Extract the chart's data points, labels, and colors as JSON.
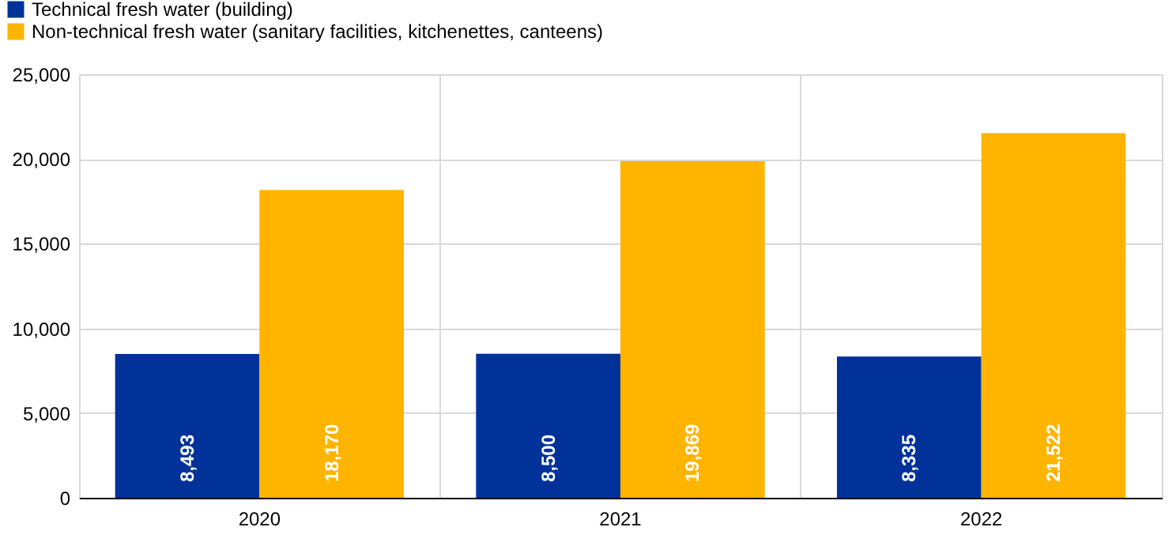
{
  "chart_data": {
    "type": "bar",
    "categories": [
      "2020",
      "2021",
      "2022"
    ],
    "series": [
      {
        "name": "Technical fresh water (building)",
        "color": "#003299",
        "values": [
          8493,
          8500,
          8335
        ],
        "value_labels": [
          "8,493",
          "8,500",
          "8,335"
        ]
      },
      {
        "name": "Non-technical fresh water (sanitary facilities, kitchenettes, canteens)",
        "color": "#ffb400",
        "values": [
          18170,
          19869,
          21522
        ],
        "value_labels": [
          "18,170",
          "19,869",
          "21,522"
        ]
      }
    ],
    "ylim": [
      0,
      25000
    ],
    "yticks": [
      0,
      {
        "value": 5000,
        "label": "5,000"
      },
      {
        "value": 10000,
        "label": "10,000"
      },
      {
        "value": 15000,
        "label": "15,000"
      },
      {
        "value": 20000,
        "label": "20,000"
      },
      {
        "value": 25000,
        "label": "25,000"
      }
    ],
    "grid": true,
    "legend": "top left"
  }
}
